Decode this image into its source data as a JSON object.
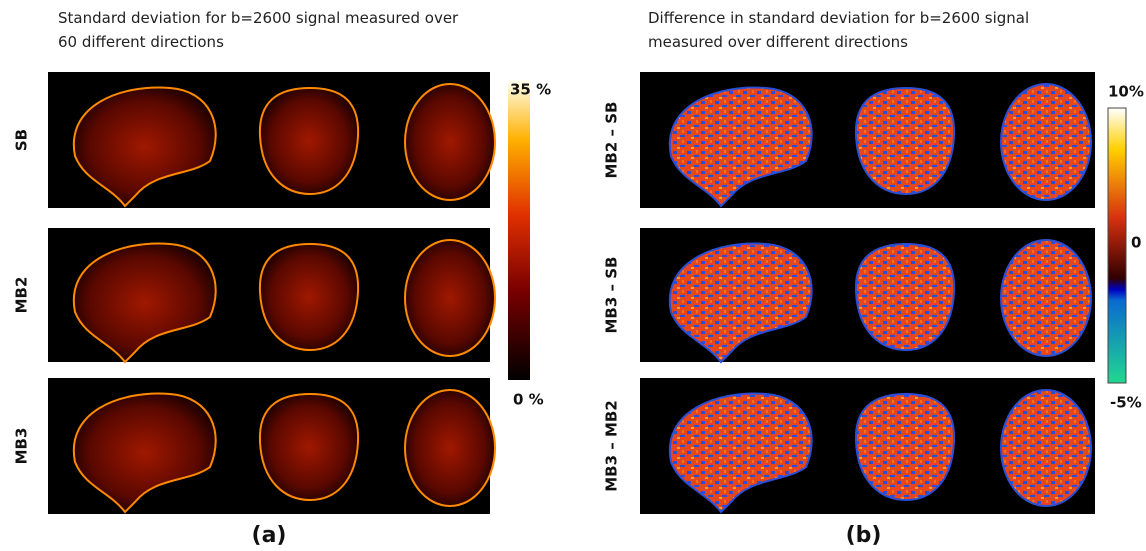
{
  "panels": [
    {
      "title": [
        "Standard deviation for b=2600 signal measured over",
        "60 different directions"
      ],
      "rows": [
        "SB",
        "MB2",
        "MB3"
      ],
      "colorbar": {
        "max": "35 %",
        "min": "0 %"
      },
      "label": "(a)"
    },
    {
      "title": [
        "Difference in standard deviation for b=2600 signal",
        "measured over different directions"
      ],
      "rows": [
        "MB2 – SB",
        "MB3 – SB",
        "MB3 – MB2"
      ],
      "colorbar": {
        "max": "10%",
        "mid": "0",
        "min": "-5%"
      },
      "label": "(b)"
    }
  ]
}
